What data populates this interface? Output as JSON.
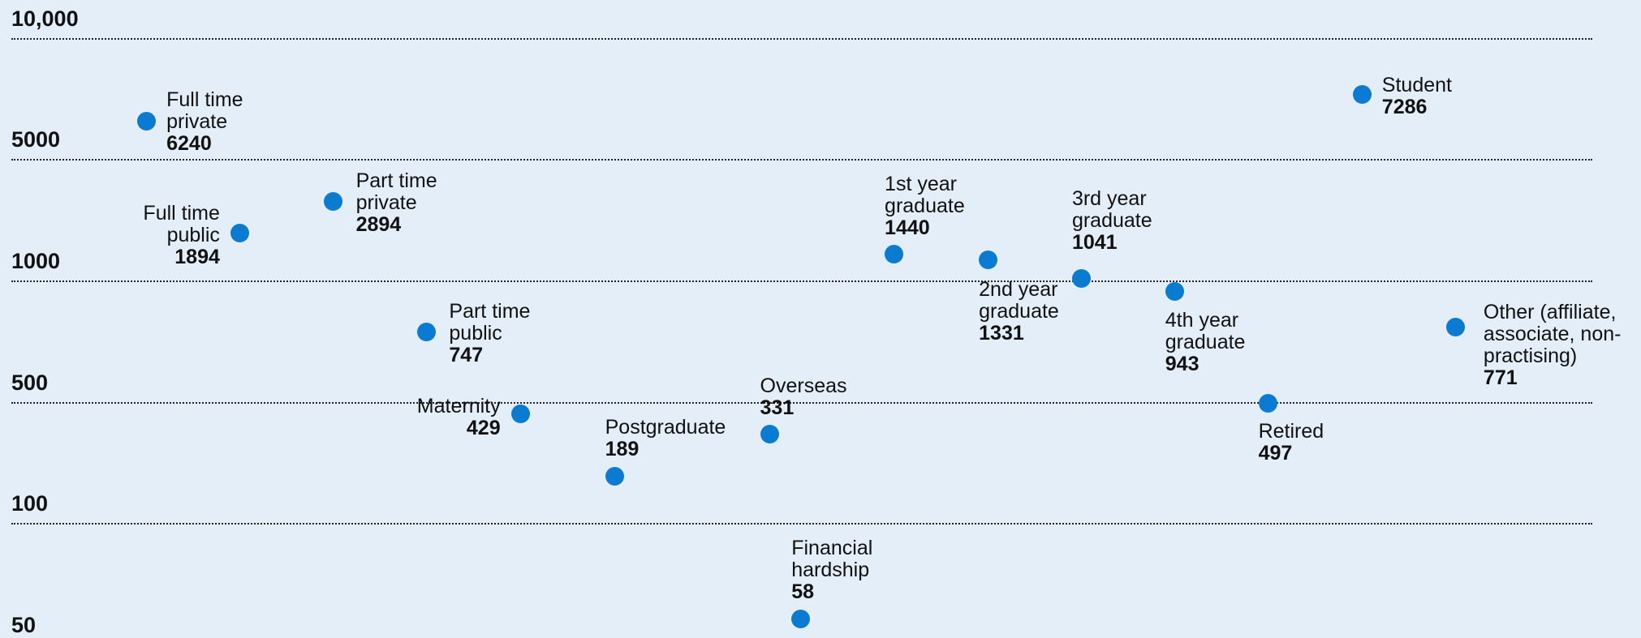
{
  "chart_data": {
    "type": "dot",
    "categories": [
      "Full time private",
      "Full time public",
      "Part time private",
      "Part time public",
      "Maternity",
      "Postgraduate",
      "Overseas",
      "Financial hardship",
      "1st year graduate",
      "2nd year graduate",
      "3rd year graduate",
      "4th year graduate",
      "Retired",
      "Student",
      "Other (affiliate, associate, non-practising)"
    ],
    "values": [
      6240,
      1894,
      2894,
      747,
      429,
      189,
      331,
      58,
      1440,
      1331,
      1041,
      943,
      497,
      7286,
      771
    ],
    "color": "#0a7bd0",
    "ylim": [
      50,
      10000
    ],
    "yticks": [
      50,
      100,
      500,
      1000,
      5000,
      {
        "value": 10000,
        "label": "10,000"
      }
    ],
    "grid": true
  }
}
